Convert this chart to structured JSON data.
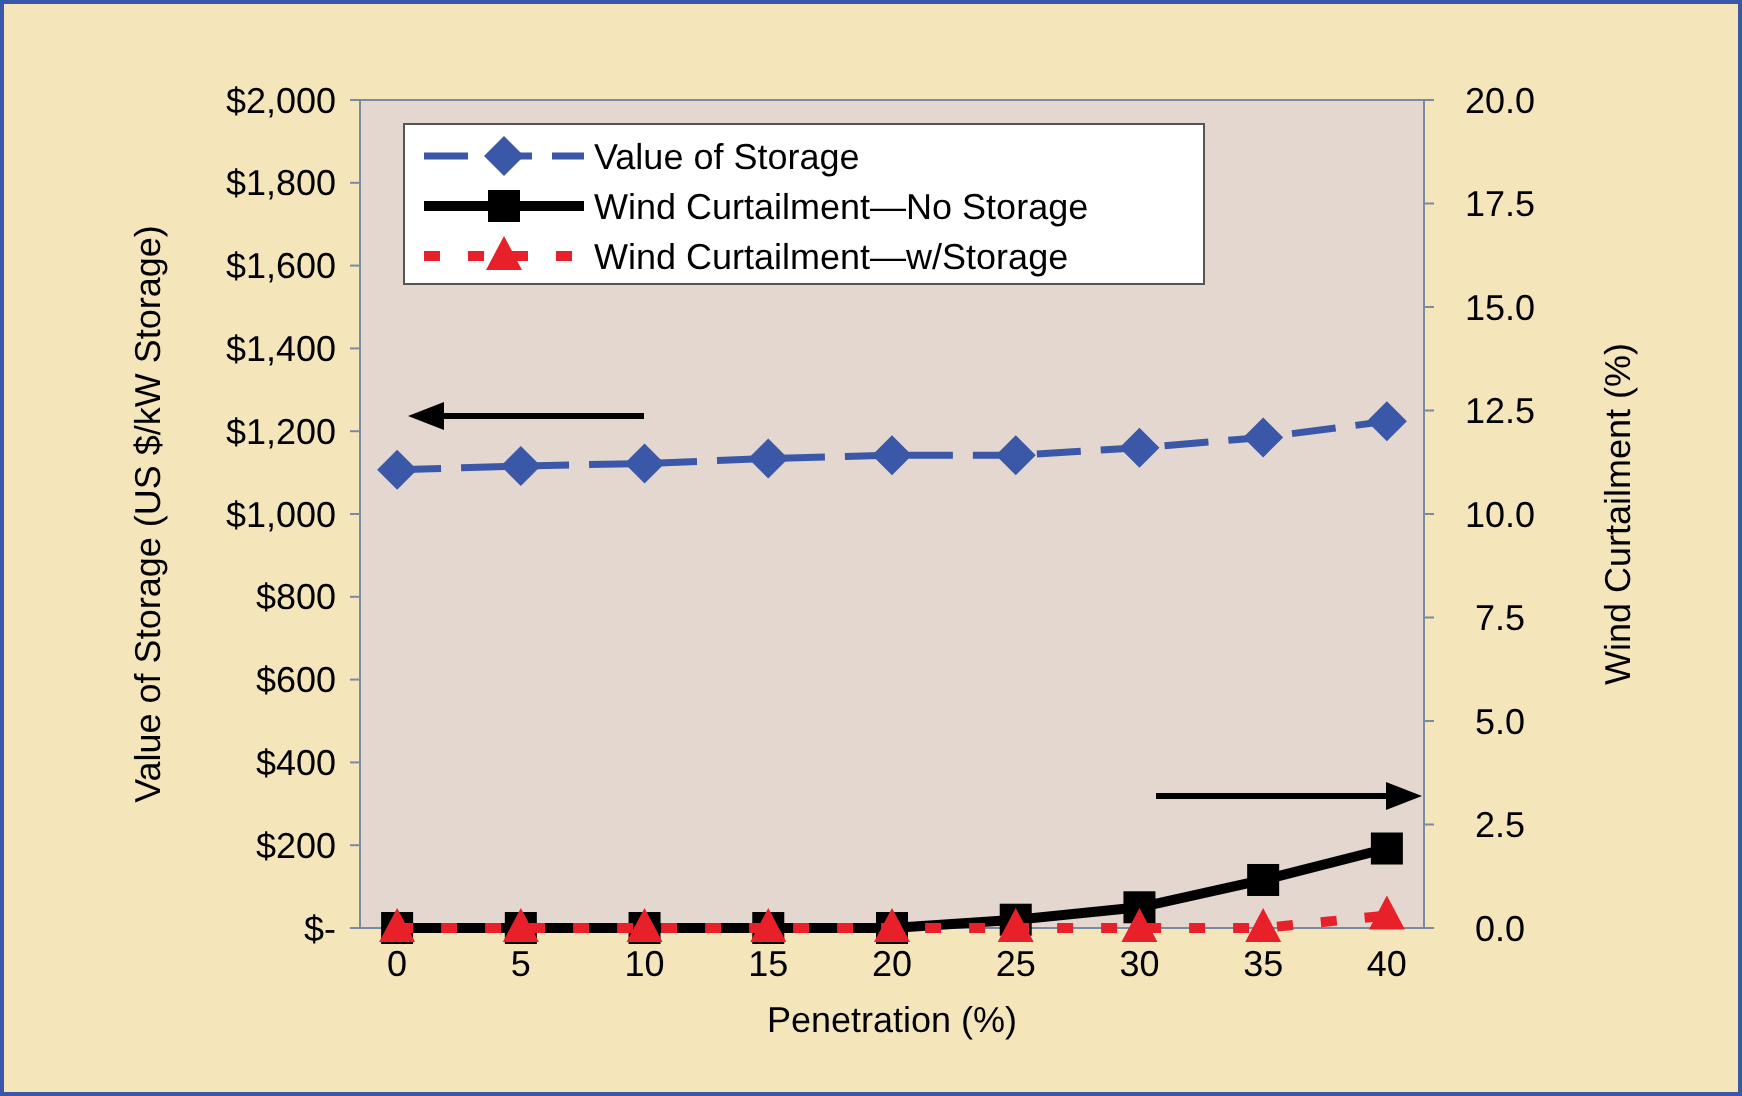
{
  "chart_data": {
    "type": "line",
    "xlabel": "Penetration (%)",
    "ylabel": "Value of Storage (US $/kW Storage)",
    "y2label": "Wind Curtailment  (%)",
    "x": [
      0,
      5,
      10,
      15,
      20,
      25,
      30,
      35,
      40
    ],
    "xlim": [
      -1.5,
      41.5
    ],
    "xticks": [
      0,
      5,
      10,
      15,
      20,
      25,
      30,
      35,
      40
    ],
    "ylim": [
      0,
      2000
    ],
    "yticks": [
      {
        "value": 0,
        "label": "$-"
      },
      {
        "value": 200,
        "label": "$200"
      },
      {
        "value": 400,
        "label": "$400"
      },
      {
        "value": 600,
        "label": "$600"
      },
      {
        "value": 800,
        "label": "$800"
      },
      {
        "value": 1000,
        "label": "$1,000"
      },
      {
        "value": 1200,
        "label": "$1,200"
      },
      {
        "value": 1400,
        "label": "$1,400"
      },
      {
        "value": 1600,
        "label": "$1,600"
      },
      {
        "value": 1800,
        "label": "$1,800"
      },
      {
        "value": 2000,
        "label": "$2,000"
      }
    ],
    "y2lim": [
      0,
      20
    ],
    "y2ticks": [
      {
        "value": 0,
        "label": "0.0"
      },
      {
        "value": 2.5,
        "label": "2.5"
      },
      {
        "value": 5,
        "label": "5.0"
      },
      {
        "value": 7.5,
        "label": "7.5"
      },
      {
        "value": 10,
        "label": "10.0"
      },
      {
        "value": 12.5,
        "label": "12.5"
      },
      {
        "value": 15,
        "label": "15.0"
      },
      {
        "value": 17.5,
        "label": "17.5"
      },
      {
        "value": 20,
        "label": "20.0"
      }
    ],
    "legend": "top left",
    "grid": false,
    "series": [
      {
        "name": "Value of Storage",
        "color": "#3a57a8",
        "marker": "diamond",
        "line_style": "dashed",
        "values": [
          1107,
          1116,
          1122,
          1134,
          1142,
          1142,
          1160,
          1185,
          1224
        ]
      },
      {
        "name": "Wind Curtailment—No Storage",
        "color": "#000000",
        "marker": "square",
        "line_style": "solid",
        "axis": "y2",
        "values": [
          0,
          0,
          0,
          0,
          0,
          0.2,
          0.5,
          1.16,
          1.92
        ]
      },
      {
        "name": "Wind Curtailment—w/Storage",
        "color": "#e8202a",
        "marker": "triangle",
        "line_style": "dotted",
        "axis": "y2",
        "values": [
          0,
          0,
          0,
          0,
          0,
          0,
          0,
          0,
          0.3
        ]
      }
    ]
  }
}
